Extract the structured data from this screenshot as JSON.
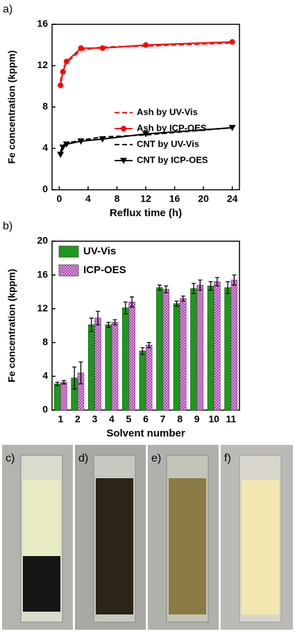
{
  "chart_data": [
    {
      "type": "line",
      "panel": "a)",
      "x_label": "Reflux time (h)",
      "y_label": "Fe concentration (kppm)",
      "x": [
        0.17,
        0.5,
        1,
        3,
        6,
        12,
        24
      ],
      "series": [
        {
          "name": "Ash by UV-Vis",
          "color": "#ff0000",
          "dash": true,
          "marker": null,
          "values": [
            10.5,
            11.8,
            12.3,
            13.5,
            13.8,
            13.9,
            14.2
          ]
        },
        {
          "name": "Ash by ICP-OES",
          "color": "#ff0000",
          "dash": false,
          "marker": "circle",
          "values": [
            10.1,
            11.4,
            12.4,
            13.7,
            13.7,
            14.0,
            14.3
          ]
        },
        {
          "name": "CNT by UV-Vis",
          "color": "#000000",
          "dash": true,
          "marker": null,
          "values": [
            3.7,
            4.3,
            4.5,
            4.8,
            5.1,
            5.3,
            6.0
          ]
        },
        {
          "name": "CNT by ICP-OES",
          "color": "#000000",
          "dash": false,
          "marker": "triangle",
          "values": [
            3.4,
            4.1,
            4.4,
            4.7,
            4.9,
            5.4,
            6.0
          ]
        }
      ],
      "xlim": [
        -1,
        25
      ],
      "xticks": [
        0,
        4,
        8,
        12,
        16,
        20,
        24
      ],
      "ylim": [
        0,
        16
      ],
      "yticks": [
        0,
        4,
        8,
        12,
        16
      ]
    },
    {
      "type": "bar",
      "panel": "b)",
      "x_label": "Solvent number",
      "y_label": "Fe concentration (kppm)",
      "categories": [
        "1",
        "2",
        "3",
        "4",
        "5",
        "6",
        "7",
        "8",
        "9",
        "10",
        "11"
      ],
      "series": [
        {
          "name": "UV-Vis",
          "color": "#1a9a1a",
          "values": [
            3.1,
            3.8,
            10.1,
            10.1,
            12.1,
            7.0,
            14.5,
            12.6,
            14.4,
            14.7,
            14.5
          ],
          "errors": [
            0.2,
            1.3,
            0.8,
            0.3,
            0.7,
            0.4,
            0.3,
            0.3,
            0.6,
            0.5,
            0.7
          ]
        },
        {
          "name": "ICP-OES",
          "color": "#cc66cc",
          "values": [
            3.3,
            4.4,
            10.9,
            10.4,
            12.8,
            7.7,
            14.3,
            13.2,
            14.8,
            15.2,
            15.4
          ],
          "errors": [
            0.2,
            1.3,
            0.8,
            0.3,
            0.6,
            0.3,
            0.4,
            0.3,
            0.6,
            0.5,
            0.6
          ]
        }
      ],
      "ylim": [
        0,
        20
      ],
      "yticks": [
        0,
        4,
        8,
        12,
        16,
        20
      ]
    }
  ],
  "photos": {
    "labels": [
      "c)",
      "d)",
      "e)",
      "f)"
    ]
  }
}
